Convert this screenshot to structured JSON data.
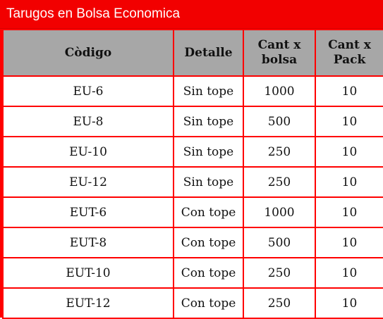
{
  "title": "Tarugos en Bolsa Economica",
  "colors": {
    "frame": "#ff0000",
    "header_bg": "#a7a7a7",
    "cell_bg": "#ffffff"
  },
  "table": {
    "headers": [
      "Còdigo",
      "Detalle",
      "Cant x bolsa",
      "Cant x Pack"
    ],
    "rows": [
      [
        "EU-6",
        "Sin tope",
        "1000",
        "10"
      ],
      [
        "EU-8",
        "Sin tope",
        "500",
        "10"
      ],
      [
        "EU-10",
        "Sin tope",
        "250",
        "10"
      ],
      [
        "EU-12",
        "Sin tope",
        "250",
        "10"
      ],
      [
        "EUT-6",
        "Con tope",
        "1000",
        "10"
      ],
      [
        "EUT-8",
        "Con tope",
        "500",
        "10"
      ],
      [
        "EUT-10",
        "Con tope",
        "250",
        "10"
      ],
      [
        "EUT-12",
        "Con tope",
        "250",
        "10"
      ]
    ]
  }
}
